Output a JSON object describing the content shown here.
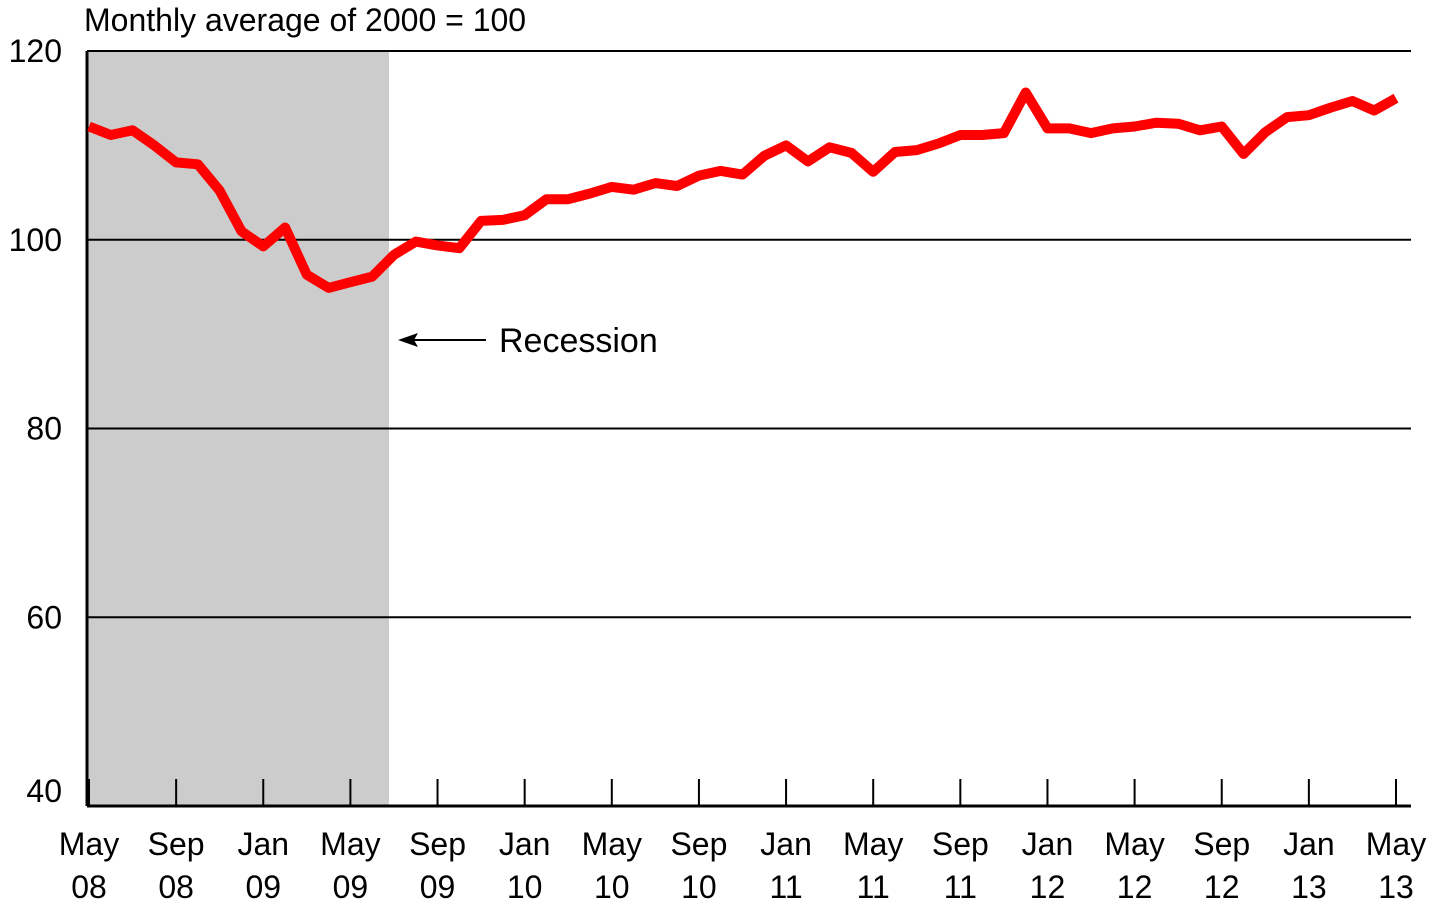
{
  "chart_data": {
    "type": "line",
    "ylabel": "Monthly average of 2000 = 100",
    "ylim": [
      40,
      120
    ],
    "yticks": [
      40,
      60,
      80,
      100,
      120
    ],
    "grid": "horizontal",
    "xticks": [
      {
        "i": 0,
        "top": "May",
        "bottom": "08"
      },
      {
        "i": 4,
        "top": "Sep",
        "bottom": "08"
      },
      {
        "i": 8,
        "top": "Jan",
        "bottom": "09"
      },
      {
        "i": 12,
        "top": "May",
        "bottom": "09"
      },
      {
        "i": 16,
        "top": "Sep",
        "bottom": "09"
      },
      {
        "i": 20,
        "top": "Jan",
        "bottom": "10"
      },
      {
        "i": 24,
        "top": "May",
        "bottom": "10"
      },
      {
        "i": 28,
        "top": "Sep",
        "bottom": "10"
      },
      {
        "i": 32,
        "top": "Jan",
        "bottom": "11"
      },
      {
        "i": 36,
        "top": "May",
        "bottom": "11"
      },
      {
        "i": 40,
        "top": "Sep",
        "bottom": "11"
      },
      {
        "i": 44,
        "top": "Jan",
        "bottom": "12"
      },
      {
        "i": 48,
        "top": "May",
        "bottom": "12"
      },
      {
        "i": 52,
        "top": "Sep",
        "bottom": "12"
      },
      {
        "i": 56,
        "top": "Jan",
        "bottom": "13"
      },
      {
        "i": 60,
        "top": "May",
        "bottom": "13"
      }
    ],
    "series": [
      {
        "color": "#ff0000",
        "values": [
          112.0,
          111.1,
          111.6,
          110.0,
          108.2,
          108.0,
          105.2,
          100.9,
          99.3,
          101.3,
          96.3,
          94.9,
          95.5,
          96.1,
          98.4,
          99.8,
          99.4,
          99.1,
          102.0,
          102.1,
          102.6,
          104.3,
          104.3,
          104.9,
          105.6,
          105.3,
          106.0,
          105.7,
          106.8,
          107.3,
          106.9,
          108.9,
          110.0,
          108.3,
          109.8,
          109.2,
          107.2,
          109.3,
          109.5,
          110.2,
          111.1,
          111.1,
          111.3,
          115.6,
          111.8,
          111.8,
          111.3,
          111.8,
          112.0,
          112.4,
          112.3,
          111.6,
          112.0,
          109.1,
          111.4,
          113.0,
          113.2,
          114.0,
          114.7,
          113.7,
          115.0
        ]
      }
    ],
    "recession": {
      "start": 0,
      "end": 14,
      "label": "Recession",
      "color": "#cccccc"
    }
  }
}
